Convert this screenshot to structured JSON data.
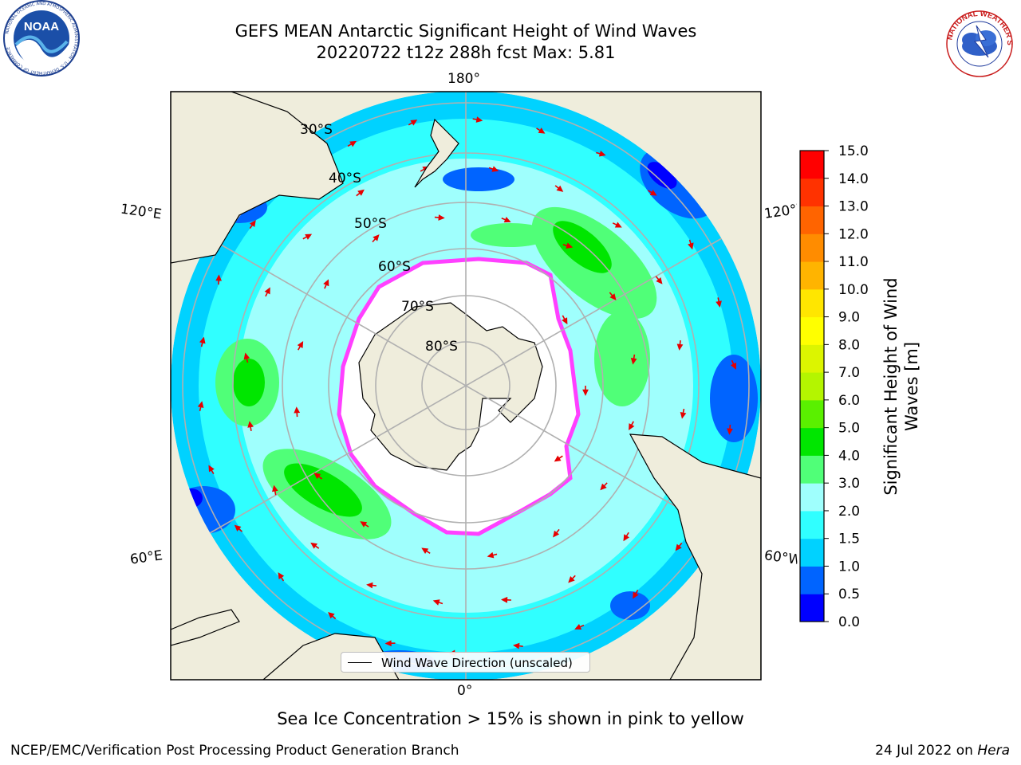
{
  "header": {
    "title_line1": "GEFS MEAN Antarctic Significant Height of Wind Waves",
    "title_line2": "20220722 t12z 288h fcst   Max: 5.81"
  },
  "logos": {
    "left": "NOAA",
    "left_ring": "NATIONAL OCEANIC AND ATMOSPHERIC ADMINISTRATION · U.S. DEPARTMENT OF COMMERCE",
    "right_ring": "NATIONAL WEATHER SERVICE"
  },
  "map": {
    "projection": "south-polar-stereographic",
    "longitude_labels": {
      "top": "180°",
      "upper_left": "120°E",
      "upper_right": "120°W",
      "lower_left": "60°E",
      "lower_right": "60°W",
      "bottom": "0°"
    },
    "latitude_labels": [
      "30°S",
      "40°S",
      "50°S",
      "60°S",
      "70°S",
      "80°S"
    ],
    "legend_label": "Wind Wave Direction (unscaled)",
    "colors": {
      "land": "#efeddc",
      "ice_edge": "#ff40ff",
      "ice_fill": "#ffffff",
      "arrow": "#e60000"
    }
  },
  "colorbar": {
    "title_line1": "Significant Height of Wind",
    "title_line2": "Waves [m]",
    "ticks": [
      "0.0",
      "0.5",
      "1.0",
      "1.5",
      "2.0",
      "3.0",
      "4.0",
      "5.0",
      "6.0",
      "7.0",
      "8.0",
      "9.0",
      "10.0",
      "11.0",
      "12.0",
      "13.0",
      "14.0",
      "15.0"
    ],
    "colors": [
      "#0000ff",
      "#0064ff",
      "#00d2ff",
      "#30ffff",
      "#9ffffd",
      "#50ff78",
      "#00e600",
      "#5af000",
      "#b4f500",
      "#dcf500",
      "#ffff00",
      "#ffe600",
      "#ffb400",
      "#ff8c00",
      "#ff6400",
      "#ff3200",
      "#ff0000"
    ]
  },
  "notes": {
    "sea_ice": "Sea Ice Concentration > 15% is shown in pink to yellow",
    "footer_left": "NCEP/EMC/Verification Post Processing Product Generation Branch",
    "footer_date": "24 Jul 2022 on ",
    "footer_machine": "Hera"
  }
}
